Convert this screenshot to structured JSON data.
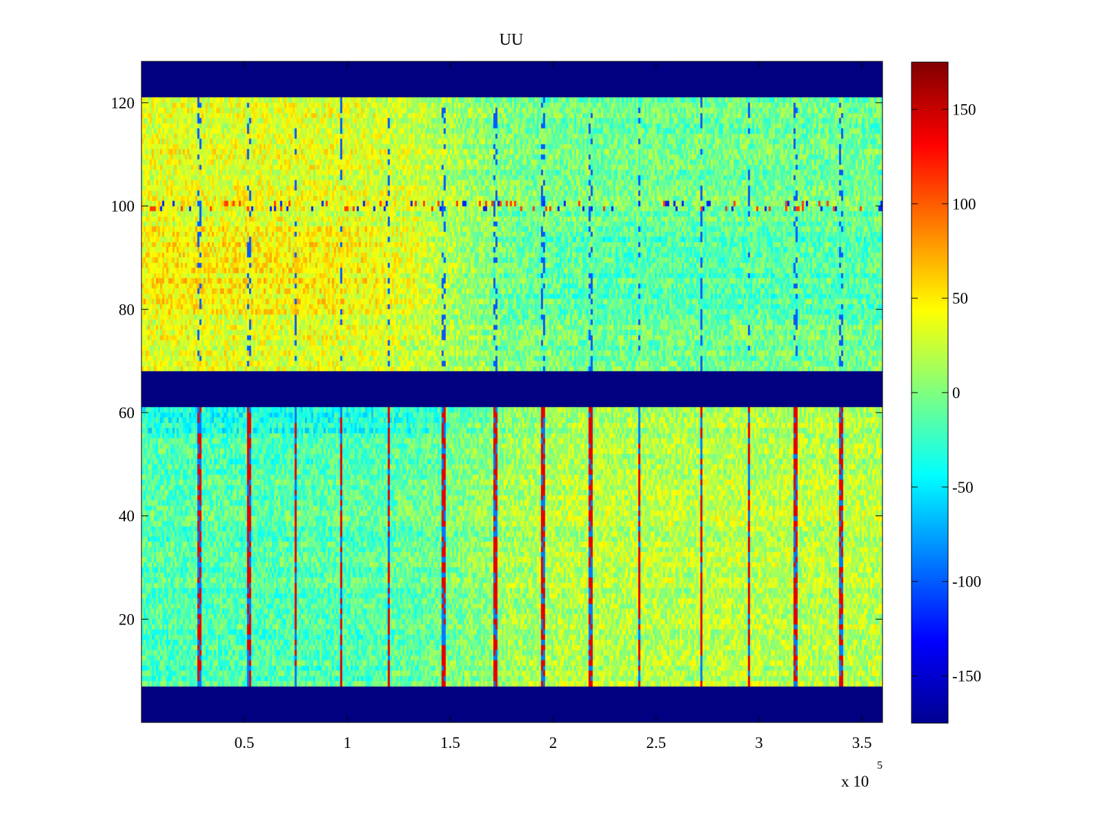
{
  "chart_data": {
    "type": "heatmap",
    "title": "UU",
    "xlabel": "",
    "ylabel": "",
    "x_multiplier_label": "x 10",
    "x_multiplier_exponent": "5",
    "xlim": [
      0,
      3.6
    ],
    "ylim": [
      0,
      128
    ],
    "x_ticks": [
      0.5,
      1,
      1.5,
      2,
      2.5,
      3,
      3.5
    ],
    "x_tick_labels": [
      "0.5",
      "1",
      "1.5",
      "2",
      "2.5",
      "3",
      "3.5"
    ],
    "y_ticks": [
      20,
      40,
      60,
      80,
      100,
      120
    ],
    "y_tick_labels": [
      "20",
      "40",
      "60",
      "80",
      "100",
      "120"
    ],
    "colorbar": {
      "colormap": "jet",
      "clim": [
        -175,
        175
      ],
      "ticks": [
        150,
        100,
        50,
        0,
        -50,
        -100,
        -150
      ],
      "tick_labels": [
        "150",
        "100",
        "50",
        "0",
        "-50",
        "-100",
        "-150"
      ]
    },
    "masked_rows": [
      {
        "from": 0,
        "to": 7,
        "value": -175
      },
      {
        "from": 61.5,
        "to": 68.5,
        "value": -175
      },
      {
        "from": 121.5,
        "to": 128,
        "value": -175
      }
    ],
    "regions": [
      {
        "name": "upper band",
        "y_from": 68.5,
        "y_to": 121.5,
        "mean_left": 35,
        "mean_right": -5,
        "transition_x": 1.5
      },
      {
        "name": "lower band",
        "y_from": 7,
        "y_to": 61.5,
        "mean_left": -15,
        "mean_right": 20,
        "transition_x": 1.6
      }
    ],
    "stripe_x_positions": [
      0.28,
      0.52,
      0.75,
      0.97,
      1.2,
      1.47,
      1.72,
      1.95,
      2.18,
      2.42,
      2.72,
      2.95,
      3.18,
      3.4
    ]
  }
}
